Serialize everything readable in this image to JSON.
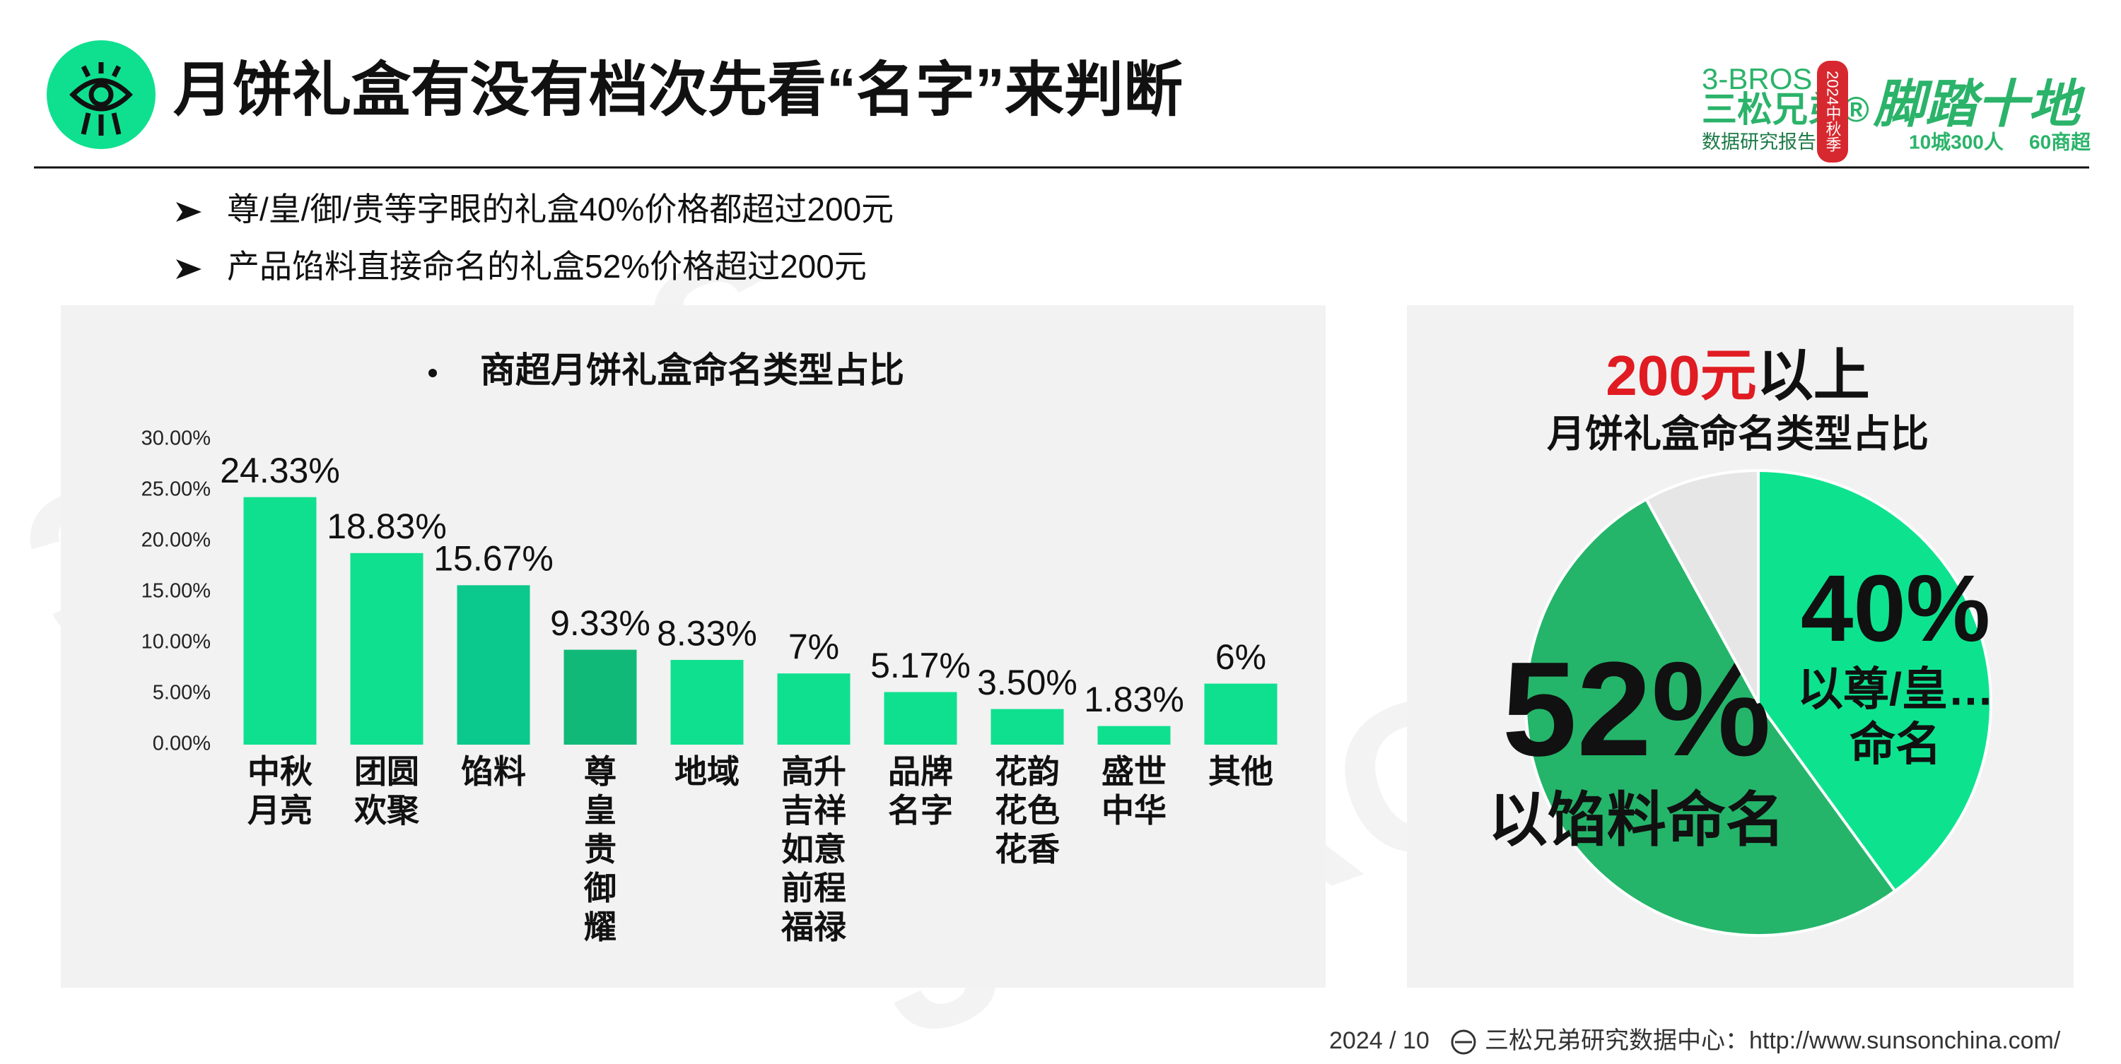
{
  "header": {
    "title": "月饼礼盒有没有档次先看“名字”来判断"
  },
  "logo": {
    "brand_en": "3-BROS",
    "brand_cn": "三松兄弟®",
    "subtitle": "数据研究报告",
    "season": "2024中秋季",
    "slogan": "脚踏十地",
    "stat1": "10城300人",
    "stat2": "60商超"
  },
  "bullets": [
    "尊/皇/御/贵等字眼的礼盒40%价格都超过200元",
    "产品馅料直接命名的礼盒52%价格超过200元"
  ],
  "watermark": "3-BROS",
  "chart_data": [
    {
      "type": "bar",
      "title": "商超月饼礼盒命名类型占比",
      "categories": [
        "中秋\n月亮",
        "团圆\n欢聚",
        "馅料",
        "尊\n皇\n贵\n御\n耀",
        "地域",
        "高升\n吉祥\n如意\n前程\n福禄",
        "品牌\n名字",
        "花韵\n花色\n花香",
        "盛世\n中华",
        "其他"
      ],
      "values": [
        24.33,
        18.83,
        15.67,
        9.33,
        8.33,
        7,
        5.17,
        3.5,
        1.83,
        6
      ],
      "value_labels": [
        "24.33%",
        "18.83%",
        "15.67%",
        "9.33%",
        "8.33%",
        "7%",
        "5.17%",
        "3.50%",
        "1.83%",
        "6%"
      ],
      "colors": [
        "#0fe08f",
        "#0fe08f",
        "#0bc88c",
        "#11b978",
        "#0fe08f",
        "#0fe08f",
        "#0fe08f",
        "#0fe08f",
        "#0fe08f",
        "#0fe08f"
      ],
      "ylim": [
        0,
        30
      ],
      "yticks": [
        {
          "value": 0,
          "label": "0.00%"
        },
        {
          "value": 5,
          "label": "5.00%"
        },
        {
          "value": 10,
          "label": "10.00%"
        },
        {
          "value": 15,
          "label": "15.00%"
        },
        {
          "value": 20,
          "label": "20.00%"
        },
        {
          "value": 25,
          "label": "25.00%"
        },
        {
          "value": 30,
          "label": "30.00%"
        }
      ]
    },
    {
      "type": "pie",
      "title_parts": [
        "200元",
        "以上"
      ],
      "subtitle": "月饼礼盒命名类型占比",
      "categories": [
        "以尊/皇…\n命名",
        "以馅料命名",
        null
      ],
      "values": [
        40,
        52,
        8
      ],
      "value_labels": [
        "40%",
        "52%",
        null
      ],
      "colors": [
        "#0de38f",
        "#24b56a",
        "#e6e6e6"
      ]
    }
  ],
  "footer": {
    "date": "2024 / 10",
    "source": "三松兄弟研究数据中心：http://www.sunsonchina.com/"
  }
}
